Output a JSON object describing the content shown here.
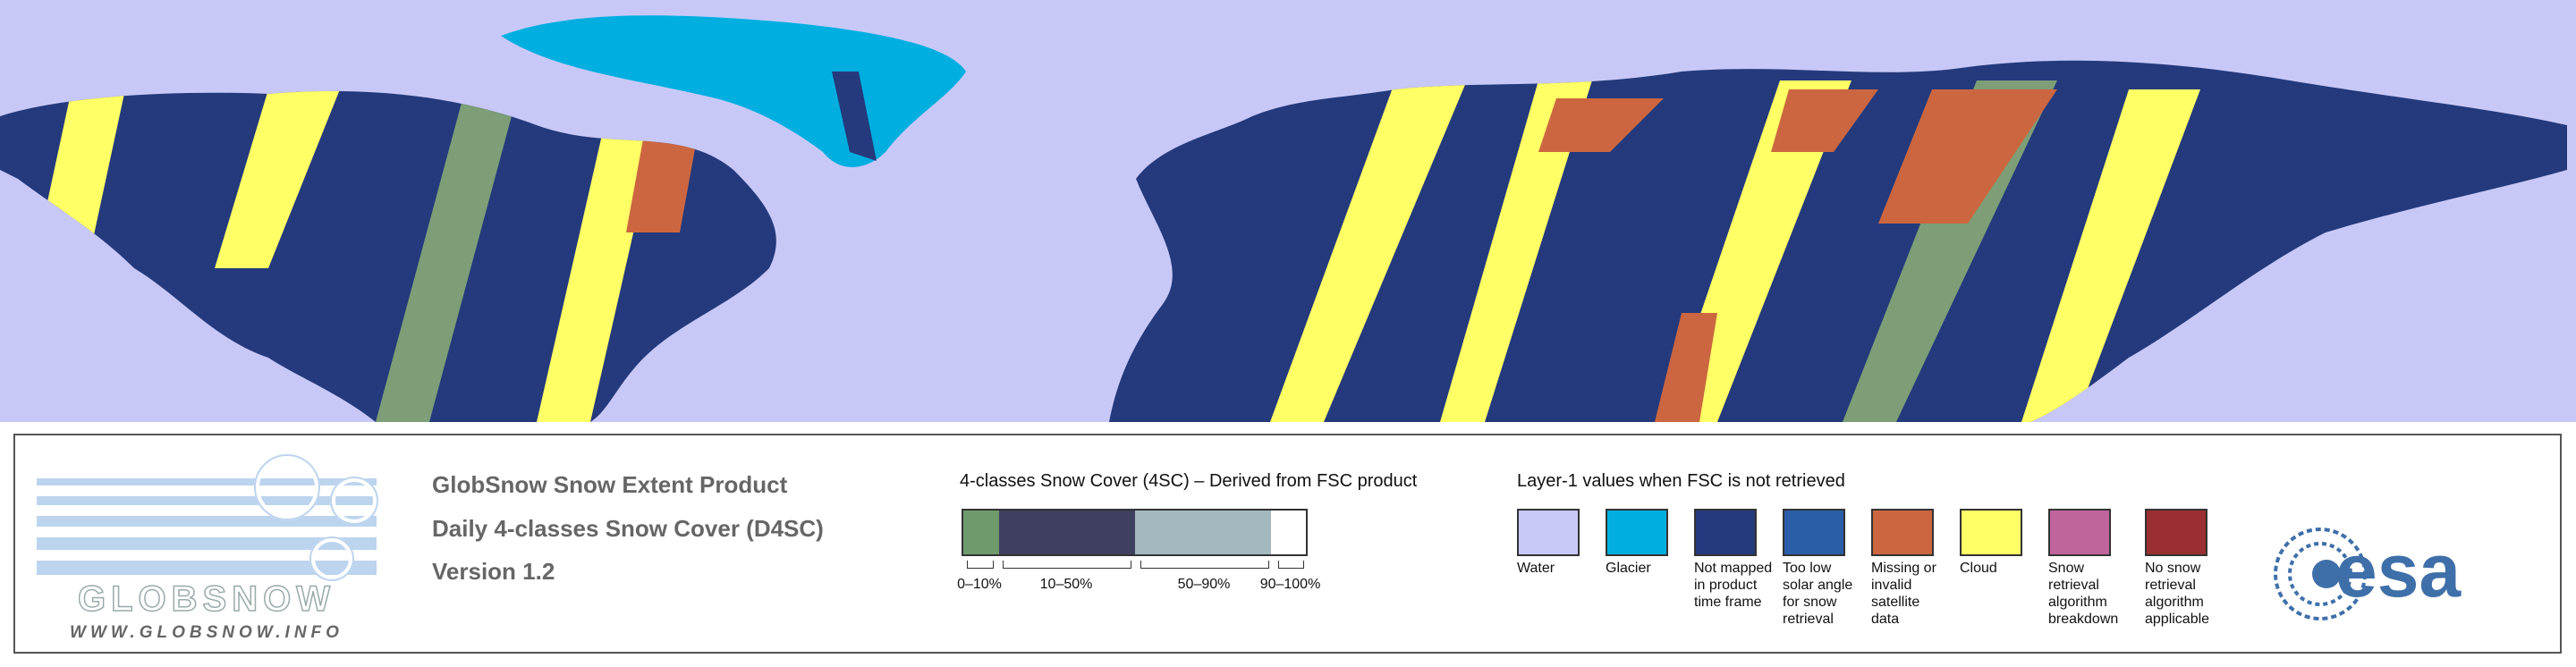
{
  "product": {
    "lines": [
      "GlobSnow Snow Extent Product",
      "Daily 4-classes Snow Cover (D4SC)",
      "Version 1.2"
    ]
  },
  "logo": {
    "name": "GLOBSNOW",
    "url": "WWW.GLOBSNOW.INFO"
  },
  "scale": {
    "title": "4-classes Snow Cover (4SC) – Derived from FSC product",
    "classes": [
      {
        "label": "0–10%",
        "color": "#6f9a6c"
      },
      {
        "label": "10–50%",
        "color": "#3f3f5f"
      },
      {
        "label": "50–90%",
        "color": "#a3b9bf"
      },
      {
        "label": "90–100%",
        "color": "#ffffff"
      }
    ]
  },
  "legend": {
    "title": "Layer-1 values when FSC is not retrieved",
    "items": [
      {
        "label": "Water",
        "color": "#c8c8f8"
      },
      {
        "label": "Glacier",
        "color": "#00aee0"
      },
      {
        "label": "Not mapped in product time frame",
        "color": "#243a7c"
      },
      {
        "label": "Too low solar angle for snow retrieval",
        "color": "#2b5ea8"
      },
      {
        "label": "Missing or invalid satellite data",
        "color": "#cc6640"
      },
      {
        "label": "Cloud",
        "color": "#ffff66"
      },
      {
        "label": "Snow retrieval algorithm breakdown",
        "color": "#c0649e"
      },
      {
        "label": "No snow retrieval algorithm applicable",
        "color": "#9a2e30"
      }
    ]
  },
  "agency": {
    "name": "esa"
  }
}
